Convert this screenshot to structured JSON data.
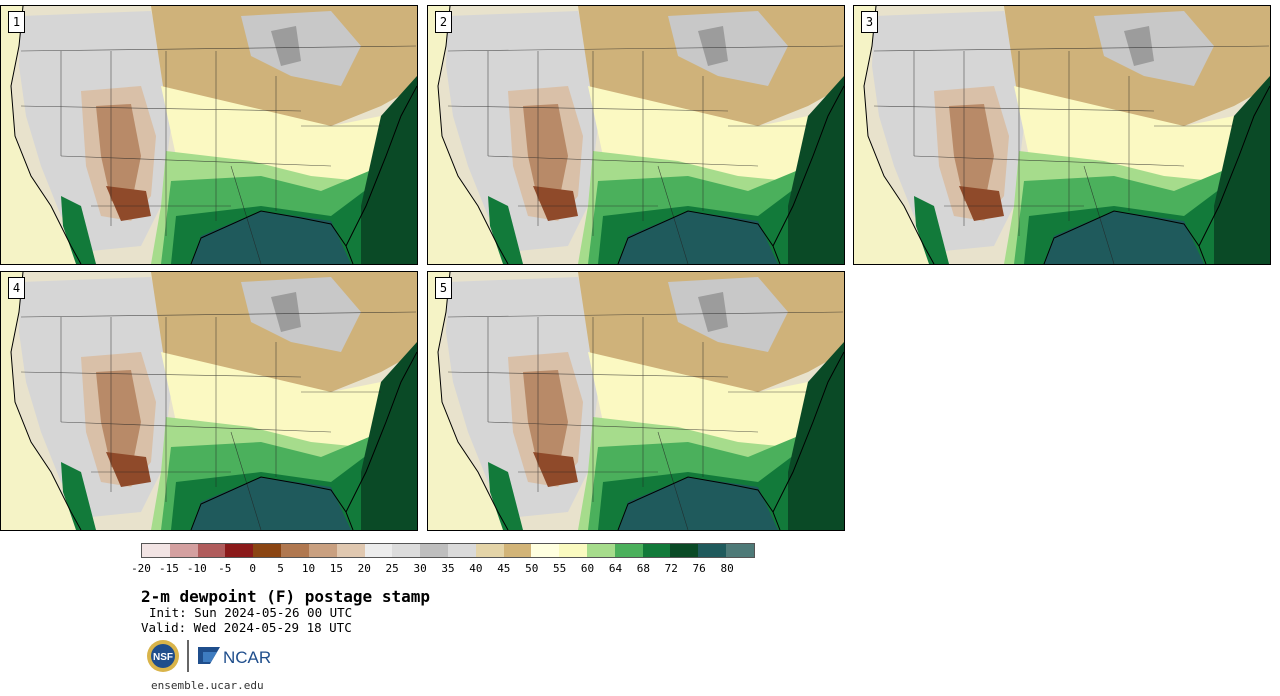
{
  "panels": [
    {
      "label": "1"
    },
    {
      "label": "2"
    },
    {
      "label": "3"
    },
    {
      "label": "4"
    },
    {
      "label": "5"
    }
  ],
  "colorbar": {
    "colors": [
      "#f2e4e4",
      "#d4a0a0",
      "#b05c5c",
      "#8b1a1a",
      "#8b4513",
      "#b07850",
      "#c9a080",
      "#e0c8b0",
      "#ececec",
      "#dcdcdc",
      "#bebebe",
      "#dadada",
      "#e4d4a8",
      "#d2b478",
      "#ffffe0",
      "#fafac0",
      "#a6dc8c",
      "#4bb05c",
      "#127a3a",
      "#0a4a26",
      "#1f5a5c",
      "#4e7a78"
    ],
    "ticks": [
      "-20",
      "-15",
      "-10",
      "-5",
      "0",
      "5",
      "10",
      "15",
      "20",
      "25",
      "30",
      "35",
      "40",
      "45",
      "50",
      "55",
      "60",
      "64",
      "68",
      "72",
      "76",
      "80"
    ]
  },
  "title": "2-m dewpoint (F) postage stamp",
  "init": "Init: Sun 2024-05-26 00 UTC",
  "valid": "Valid: Wed 2024-05-29 18 UTC",
  "logos": {
    "nsf": "NSF",
    "ncar": "NCAR"
  },
  "footer": "ensemble.ucar.edu"
}
